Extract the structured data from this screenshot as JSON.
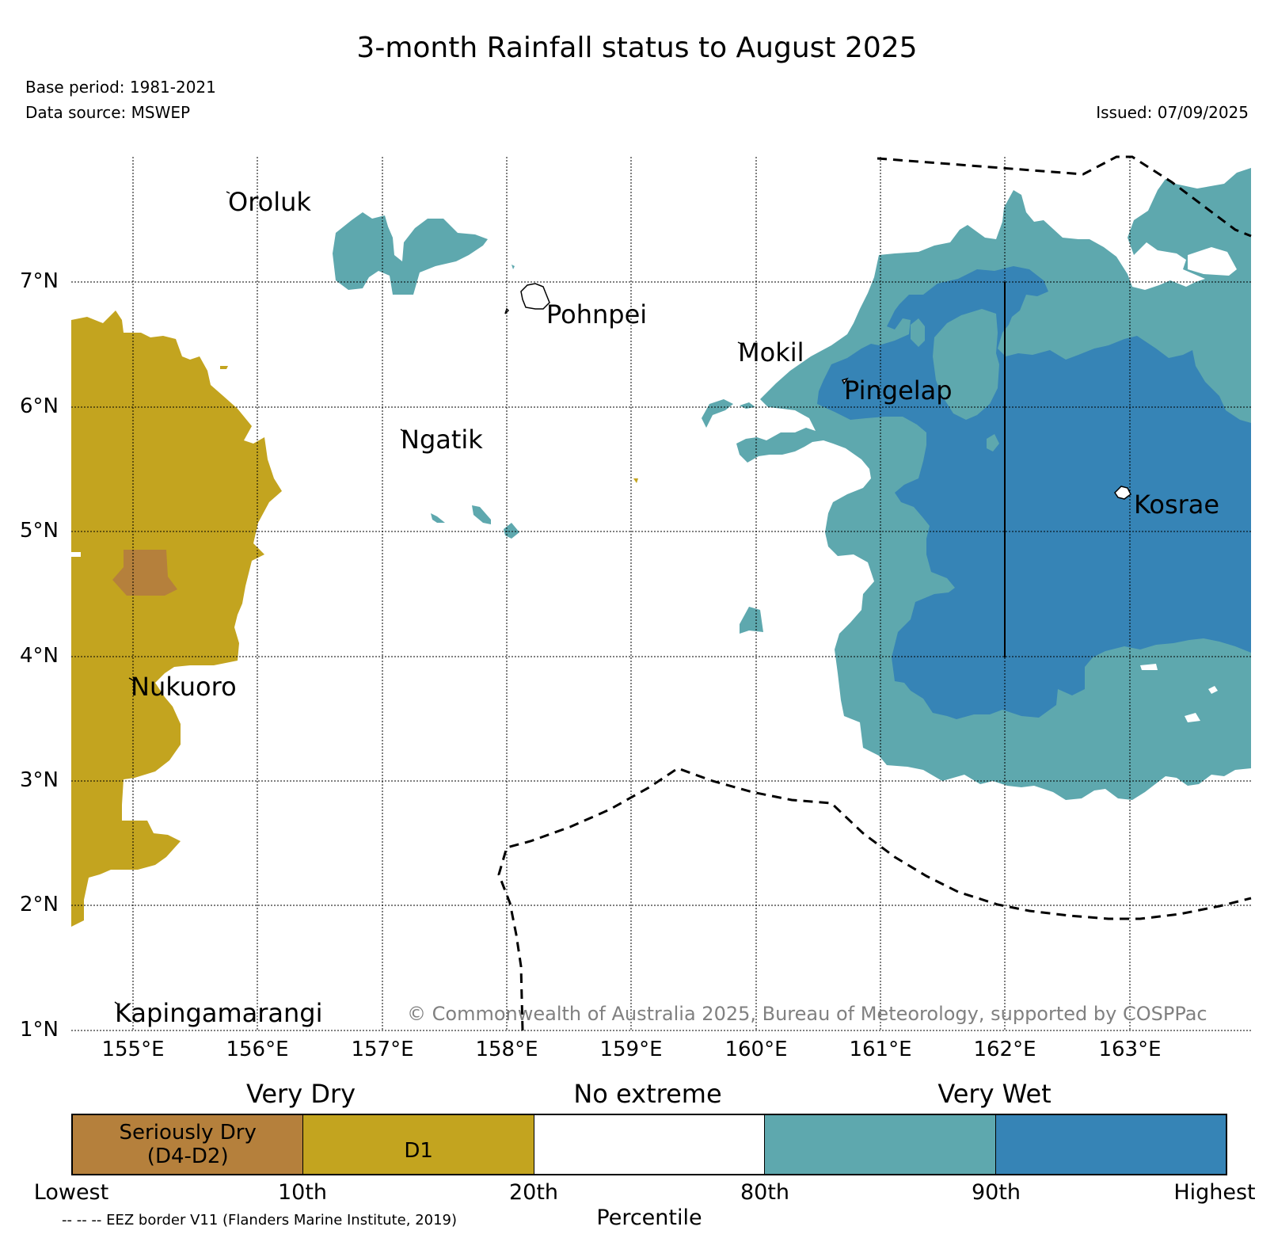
{
  "header": {
    "title": "3-month Rainfall status to August 2025",
    "base_period": "Base period: 1981-2021",
    "data_source": "Data source: MSWEP",
    "issued": "Issued: 07/09/2025"
  },
  "map": {
    "lat_ticks": [
      "7°N",
      "6°N",
      "5°N",
      "4°N",
      "3°N",
      "2°N",
      "1°N"
    ],
    "lon_ticks": [
      "155°E",
      "156°E",
      "157°E",
      "158°E",
      "159°E",
      "160°E",
      "161°E",
      "162°E",
      "163°E"
    ],
    "places": {
      "oroluk": "Oroluk",
      "pohnpei": "Pohnpei",
      "mokil": "Mokil",
      "pingelap": "Pingelap",
      "ngatik": "Ngatik",
      "kosrae": "Kosrae",
      "nukuoro": "Nukuoro",
      "kapingamarangi": "Kapingamarangi"
    },
    "copyright": "© Commonwealth of Australia 2025, Bureau of Meteorology, supported by COSPPac"
  },
  "legend": {
    "categories": {
      "very_dry": "Very Dry",
      "no_extreme": "No extreme",
      "very_wet": "Very Wet"
    },
    "classes": {
      "seriously_dry_line1": "Seriously Dry",
      "seriously_dry_line2": "(D4-D2)",
      "d1": "D1"
    },
    "ticks": {
      "lowest": "Lowest",
      "p10": "10th",
      "p20": "20th",
      "p80": "80th",
      "p90": "90th",
      "highest": "Highest"
    },
    "axis_label": "Percentile",
    "eez_note": "-- -- -- EEZ border V11 (Flanders Marine Institute, 2019)"
  },
  "colors": {
    "seriously_dry": "#b5803c",
    "d1": "#c3a41f",
    "no_extreme": "#ffffff",
    "wet_80_90": "#5ea8ae",
    "wet_90_plus": "#3684b6"
  }
}
